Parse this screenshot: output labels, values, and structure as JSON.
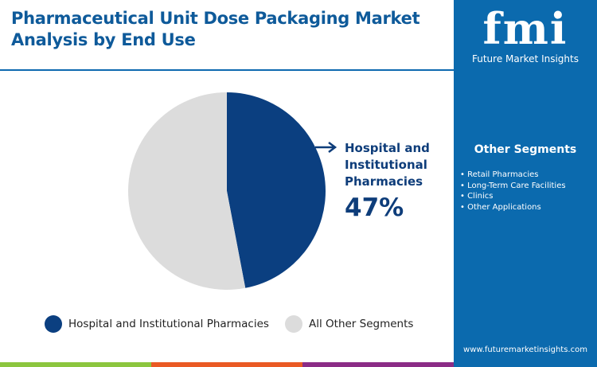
{
  "title": "Pharmaceutical Unit Dose Packaging Market Analysis by End Use",
  "logo": {
    "text": "fmi",
    "subtitle": "Future Market Insights"
  },
  "other_segments": {
    "title": "Other Segments",
    "items": [
      "Retail Pharmacies",
      "Long-Term Care Facilities",
      "Clinics",
      "Other Applications"
    ]
  },
  "website": "www.futuremarketinsights.com",
  "callout": {
    "label_line1": "Hospital and",
    "label_line2": "Institutional",
    "label_line3": "Pharmacies",
    "value": "47%"
  },
  "colors": {
    "primary": "#0b3f80",
    "other": "#dcdcdc",
    "panel": "#0b6aae",
    "bar_green": "#8cc63f",
    "bar_orange": "#ea5a24",
    "bar_purple": "#8b2c86"
  },
  "chart_data": {
    "type": "pie",
    "categories": [
      "Hospital and Institutional Pharmacies",
      "All Other Segments"
    ],
    "values": [
      47,
      53
    ],
    "legend": "bottom"
  }
}
